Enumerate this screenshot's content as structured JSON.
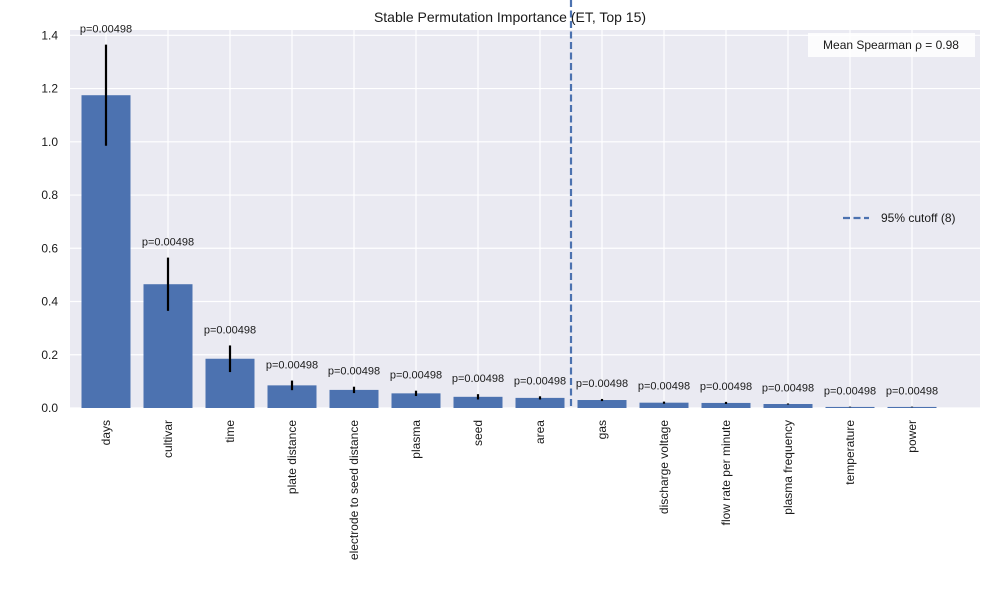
{
  "chart_data": {
    "type": "bar",
    "title": "Stable Permutation Importance (ET, Top 15)",
    "xlabel": "",
    "ylabel": "",
    "ylim": [
      0,
      1.42
    ],
    "yticks": [
      "0.0",
      "0.2",
      "0.4",
      "0.6",
      "0.8",
      "1.0",
      "1.2",
      "1.4"
    ],
    "grid": true,
    "categories": [
      "days",
      "cultivar",
      "time",
      "plate distance",
      "electrode to seed distance",
      "plasma",
      "seed",
      "area",
      "gas",
      "discharge voltage",
      "flow rate per minute",
      "plasma frequency",
      "temperature",
      "power"
    ],
    "values": [
      1.175,
      0.465,
      0.185,
      0.085,
      0.068,
      0.055,
      0.042,
      0.038,
      0.03,
      0.02,
      0.019,
      0.015,
      0.004,
      0.004
    ],
    "errors": [
      0.19,
      0.1,
      0.05,
      0.018,
      0.012,
      0.01,
      0.01,
      0.006,
      0.004,
      0.004,
      0.004,
      0.002,
      0.001,
      0.001
    ],
    "annotations": [
      "p=0.00498",
      "p=0.00498",
      "p=0.00498",
      "p=0.00498",
      "p=0.00498",
      "p=0.00498",
      "p=0.00498",
      "p=0.00498",
      "p=0.00498",
      "p=0.00498",
      "p=0.00498",
      "p=0.00498",
      "p=0.00498",
      "p=0.00498"
    ],
    "cutoff": {
      "label": "95% cutoff (8)",
      "after_index": 7
    },
    "spearman_label": "Mean Spearman ρ = 0.98",
    "legend_position": "center-right",
    "colors": {
      "bar": "#4c72b0",
      "background": "#eaeaf2",
      "grid": "#ffffff",
      "error": "#000000",
      "cutoff": "#4c72b0"
    }
  }
}
